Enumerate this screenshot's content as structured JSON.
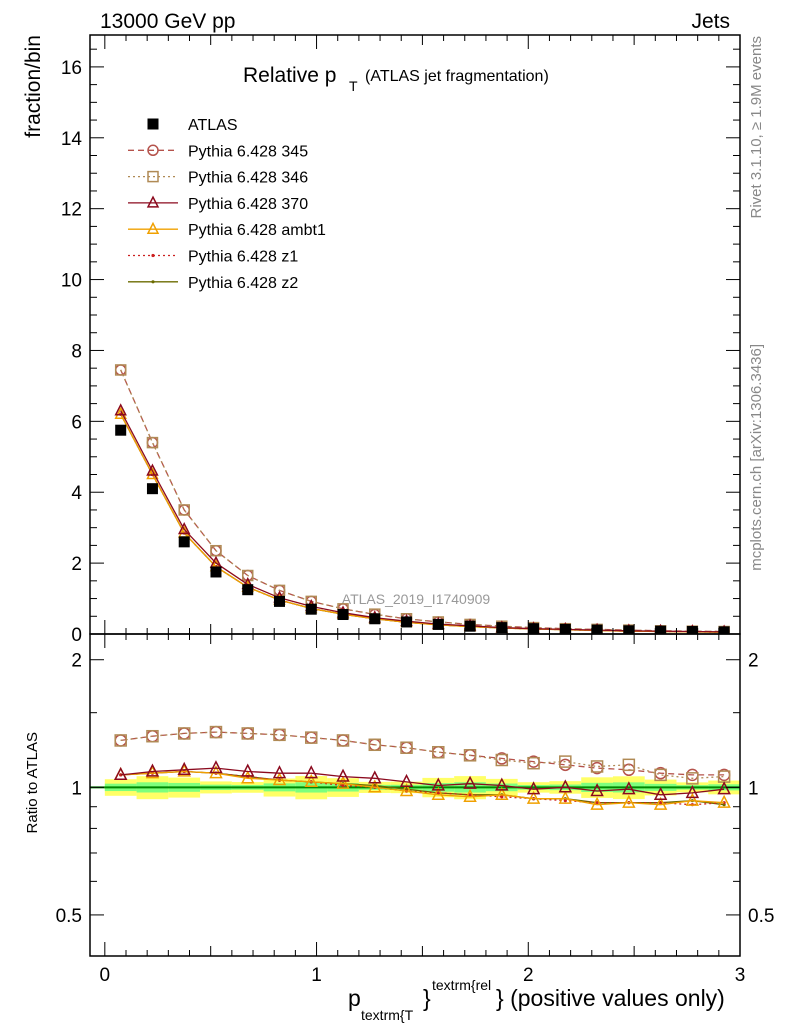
{
  "header": {
    "left": "13000 GeV pp",
    "right": "Jets"
  },
  "plot_title": {
    "main": "Relative p",
    "sub": "T",
    "paren": "(ATLAS jet fragmentation)"
  },
  "side_labels": {
    "rivet": "Rivet 3.1.10, ≥ 1.9M events",
    "mcplots": "mcplots.cern.ch [arXiv:1306.3436]"
  },
  "watermark": "ATLAS_2019_I1740909",
  "xlabel": {
    "p": "p",
    "sub": "textrm{T",
    "brace": "}",
    "sup": "textrm{rel",
    "rest": "} (positive values only)"
  },
  "colors": {
    "atlas": "#000000",
    "p345": "#b5534c",
    "p346": "#b08a55",
    "p370": "#8b0a1e",
    "ambt1": "#f0a000",
    "z1": "#cc2020",
    "z2": "#6b6b00",
    "band_inner": "#7dff7d",
    "band_outer": "#ffff66",
    "ref_line": "#008800"
  },
  "chart_data": [
    {
      "type": "line",
      "panel": "main",
      "ylabel": "fraction/bin",
      "xlim": [
        -0.07,
        3.0
      ],
      "ylim": [
        0,
        16.9
      ],
      "yticks": [
        0,
        2,
        4,
        6,
        8,
        10,
        12,
        14,
        16
      ],
      "ytick_labels": [
        "0",
        "2",
        "4",
        "6",
        "8",
        "10",
        "12",
        "14",
        "16"
      ],
      "legend_position": "top-left",
      "x": [
        0.075,
        0.225,
        0.375,
        0.525,
        0.675,
        0.825,
        0.975,
        1.125,
        1.275,
        1.425,
        1.575,
        1.725,
        1.875,
        2.025,
        2.175,
        2.325,
        2.475,
        2.625,
        2.775,
        2.925
      ],
      "series": [
        {
          "name": "ATLAS",
          "key": "atlas",
          "marker": "square",
          "line": "none",
          "values": [
            5.75,
            4.1,
            2.6,
            1.75,
            1.25,
            0.92,
            0.7,
            0.55,
            0.43,
            0.34,
            0.27,
            0.22,
            0.18,
            0.15,
            0.13,
            0.11,
            0.09,
            0.08,
            0.07,
            0.06
          ]
        },
        {
          "name": "Pythia 6.428 345",
          "key": "p345",
          "marker": "circle",
          "line": "dashed",
          "values": [
            7.45,
            5.4,
            3.5,
            2.35,
            1.65,
            1.23,
            0.92,
            0.71,
            0.55,
            0.43,
            0.34,
            0.27,
            0.22,
            0.18,
            0.15,
            0.13,
            0.11,
            0.09,
            0.08,
            0.07
          ]
        },
        {
          "name": "Pythia 6.428 346",
          "key": "p346",
          "marker": "square-open",
          "line": "dotted",
          "values": [
            7.45,
            5.4,
            3.5,
            2.35,
            1.65,
            1.23,
            0.92,
            0.71,
            0.56,
            0.43,
            0.34,
            0.27,
            0.22,
            0.18,
            0.15,
            0.13,
            0.11,
            0.09,
            0.08,
            0.07
          ]
        },
        {
          "name": "Pythia 6.428 370",
          "key": "p370",
          "marker": "triangle",
          "line": "solid",
          "values": [
            6.3,
            4.6,
            2.95,
            2.0,
            1.4,
            1.02,
            0.78,
            0.6,
            0.46,
            0.36,
            0.28,
            0.23,
            0.18,
            0.15,
            0.13,
            0.11,
            0.09,
            0.08,
            0.07,
            0.06
          ]
        },
        {
          "name": "Pythia 6.428 ambt1",
          "key": "ambt1",
          "marker": "triangle",
          "line": "solid",
          "values": [
            6.2,
            4.5,
            2.85,
            1.9,
            1.32,
            0.96,
            0.72,
            0.56,
            0.43,
            0.33,
            0.26,
            0.21,
            0.17,
            0.14,
            0.12,
            0.1,
            0.08,
            0.07,
            0.06,
            0.05
          ]
        },
        {
          "name": "Pythia 6.428 z1",
          "key": "z1",
          "marker": "dot",
          "line": "dotted",
          "values": [
            6.2,
            4.5,
            2.85,
            1.9,
            1.32,
            0.96,
            0.72,
            0.56,
            0.43,
            0.33,
            0.26,
            0.21,
            0.17,
            0.14,
            0.12,
            0.1,
            0.08,
            0.07,
            0.06,
            0.05
          ]
        },
        {
          "name": "Pythia 6.428 z2",
          "key": "z2",
          "marker": "dot",
          "line": "solid",
          "values": [
            6.2,
            4.5,
            2.85,
            1.9,
            1.32,
            0.96,
            0.72,
            0.56,
            0.43,
            0.33,
            0.26,
            0.21,
            0.17,
            0.14,
            0.12,
            0.1,
            0.08,
            0.07,
            0.06,
            0.05
          ]
        }
      ]
    },
    {
      "type": "line",
      "panel": "ratio",
      "ylabel": "Ratio to ATLAS",
      "scale": "log",
      "xlim": [
        -0.07,
        3.0
      ],
      "ylim": [
        0.4,
        2.3
      ],
      "yticks": [
        0.5,
        1,
        2
      ],
      "ytick_labels": [
        "0.5",
        "1",
        "2"
      ],
      "xticks": [
        0,
        1,
        2,
        3
      ],
      "xtick_labels": [
        "0",
        "1",
        "2",
        "3"
      ],
      "x": [
        0.075,
        0.225,
        0.375,
        0.525,
        0.675,
        0.825,
        0.975,
        1.125,
        1.275,
        1.425,
        1.575,
        1.725,
        1.875,
        2.025,
        2.175,
        2.325,
        2.475,
        2.625,
        2.775,
        2.925
      ],
      "reference": {
        "value": 1.0,
        "band_inner": 0.02,
        "band_outer": 0.045
      },
      "series": [
        {
          "key": "p345",
          "marker": "circle",
          "line": "dashed",
          "values": [
            1.29,
            1.32,
            1.34,
            1.35,
            1.34,
            1.33,
            1.31,
            1.29,
            1.26,
            1.24,
            1.21,
            1.19,
            1.17,
            1.15,
            1.13,
            1.11,
            1.1,
            1.08,
            1.07,
            1.07
          ]
        },
        {
          "key": "p346",
          "marker": "square-open",
          "line": "dotted",
          "values": [
            1.29,
            1.32,
            1.34,
            1.35,
            1.34,
            1.33,
            1.31,
            1.29,
            1.26,
            1.24,
            1.21,
            1.19,
            1.16,
            1.14,
            1.15,
            1.12,
            1.13,
            1.07,
            1.05,
            1.06
          ]
        },
        {
          "key": "p370",
          "marker": "triangle",
          "line": "solid",
          "values": [
            1.07,
            1.09,
            1.1,
            1.11,
            1.09,
            1.08,
            1.08,
            1.06,
            1.05,
            1.03,
            1.01,
            1.02,
            1.01,
            0.99,
            1.0,
            0.98,
            0.99,
            0.96,
            0.97,
            0.99
          ]
        },
        {
          "key": "ambt1",
          "marker": "triangle",
          "line": "solid",
          "values": [
            1.07,
            1.08,
            1.09,
            1.08,
            1.05,
            1.04,
            1.03,
            1.02,
            1.0,
            0.98,
            0.96,
            0.95,
            0.96,
            0.94,
            0.94,
            0.91,
            0.92,
            0.91,
            0.93,
            0.92
          ]
        },
        {
          "key": "z1",
          "marker": "dot",
          "line": "dotted",
          "values": [
            1.07,
            1.08,
            1.09,
            1.08,
            1.06,
            1.04,
            1.03,
            1.01,
            1.0,
            0.98,
            0.97,
            0.96,
            0.95,
            0.94,
            0.93,
            0.92,
            0.92,
            0.92,
            0.91,
            0.92
          ]
        },
        {
          "key": "z2",
          "marker": "dot",
          "line": "solid",
          "values": [
            1.07,
            1.08,
            1.09,
            1.08,
            1.06,
            1.04,
            1.03,
            1.02,
            1.01,
            0.99,
            0.97,
            0.96,
            0.96,
            0.94,
            0.94,
            0.92,
            0.92,
            0.92,
            0.93,
            0.91
          ]
        }
      ]
    }
  ]
}
